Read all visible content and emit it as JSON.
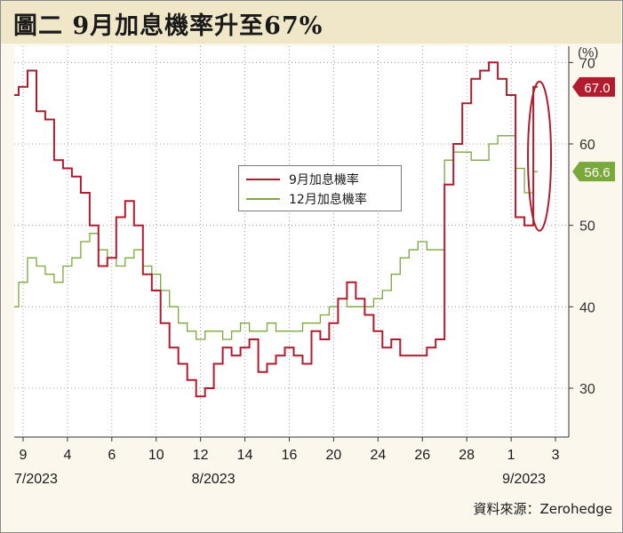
{
  "title": "圖二  9月加息機率升至67%",
  "source_label": "資料來源：",
  "source_name": "Zerohedge",
  "colors": {
    "series_sep": "#b01c2e",
    "series_dec": "#7aa83a",
    "title_bg": "#f0e7c8",
    "frame_bg": "#fbf7ec",
    "grid": "#888888"
  },
  "chart_data": {
    "type": "line",
    "title": "",
    "xlabel": "",
    "ylabel": "",
    "y_unit": "(%)",
    "ylim": [
      24,
      72
    ],
    "yticks": [
      30,
      40,
      50,
      60,
      70
    ],
    "xlim": [
      0,
      59
    ],
    "x_tick_labels": [
      {
        "x": 1,
        "label": "9"
      },
      {
        "x": 6,
        "label": "4"
      },
      {
        "x": 11,
        "label": "6"
      },
      {
        "x": 16,
        "label": "10"
      },
      {
        "x": 21,
        "label": "12"
      },
      {
        "x": 26,
        "label": "14"
      },
      {
        "x": 31,
        "label": "16"
      },
      {
        "x": 36,
        "label": "20"
      },
      {
        "x": 41,
        "label": "24"
      },
      {
        "x": 46,
        "label": "26"
      },
      {
        "x": 51,
        "label": "28"
      },
      {
        "x": 56,
        "label": "1"
      },
      {
        "x": 61,
        "label": "3"
      }
    ],
    "month_labels": [
      {
        "x": 1,
        "label": "7/2023"
      },
      {
        "x": 21,
        "label": "8/2023"
      },
      {
        "x": 56,
        "label": "9/2023"
      }
    ],
    "legend_position": "center",
    "grid": "dotted",
    "series": [
      {
        "name": "9月加息機率",
        "end_label": "67.0",
        "x": [
          0,
          1,
          2,
          3,
          4,
          5,
          6,
          7,
          8,
          9,
          10,
          11,
          12,
          13,
          14,
          15,
          16,
          17,
          18,
          19,
          20,
          21,
          22,
          23,
          24,
          25,
          26,
          27,
          28,
          29,
          30,
          31,
          32,
          33,
          34,
          35,
          36,
          37,
          38,
          39,
          40,
          41,
          42,
          43,
          44,
          45,
          46,
          47,
          48,
          49,
          50,
          51,
          52,
          53,
          54,
          55,
          56,
          57,
          58,
          59
        ],
        "values": [
          66,
          67,
          69,
          64,
          63,
          58,
          57,
          56,
          54,
          50,
          45,
          46,
          51,
          53,
          50,
          44,
          42,
          38,
          35,
          33,
          31,
          29,
          30,
          33,
          35,
          34,
          35,
          36,
          32,
          33,
          34,
          35,
          34,
          33,
          37,
          36,
          38,
          41,
          43,
          41,
          39,
          37,
          35,
          36,
          34,
          34,
          34,
          35,
          36,
          55,
          60,
          65,
          68,
          69,
          70,
          68,
          66,
          51,
          50,
          67
        ]
      },
      {
        "name": "12月加息機率",
        "end_label": "56.6",
        "x": [
          0,
          1,
          2,
          3,
          4,
          5,
          6,
          7,
          8,
          9,
          10,
          11,
          12,
          13,
          14,
          15,
          16,
          17,
          18,
          19,
          20,
          21,
          22,
          23,
          24,
          25,
          26,
          27,
          28,
          29,
          30,
          31,
          32,
          33,
          34,
          35,
          36,
          37,
          38,
          39,
          40,
          41,
          42,
          43,
          44,
          45,
          46,
          47,
          48,
          49,
          50,
          51,
          52,
          53,
          54,
          55,
          56,
          57,
          58,
          59
        ],
        "values": [
          40,
          43,
          46,
          45,
          44,
          43,
          45,
          46,
          48,
          49,
          47,
          46,
          45,
          46,
          47,
          45,
          44,
          42,
          40,
          38,
          37,
          36,
          37,
          37,
          36,
          37,
          38,
          37,
          37,
          38,
          37,
          37,
          37,
          38,
          38,
          39,
          40,
          41,
          40,
          40,
          40,
          41,
          42,
          44,
          46,
          47,
          48,
          47,
          47,
          58,
          59,
          59,
          58,
          58,
          60,
          61,
          61,
          57,
          54,
          56.6
        ]
      }
    ]
  }
}
